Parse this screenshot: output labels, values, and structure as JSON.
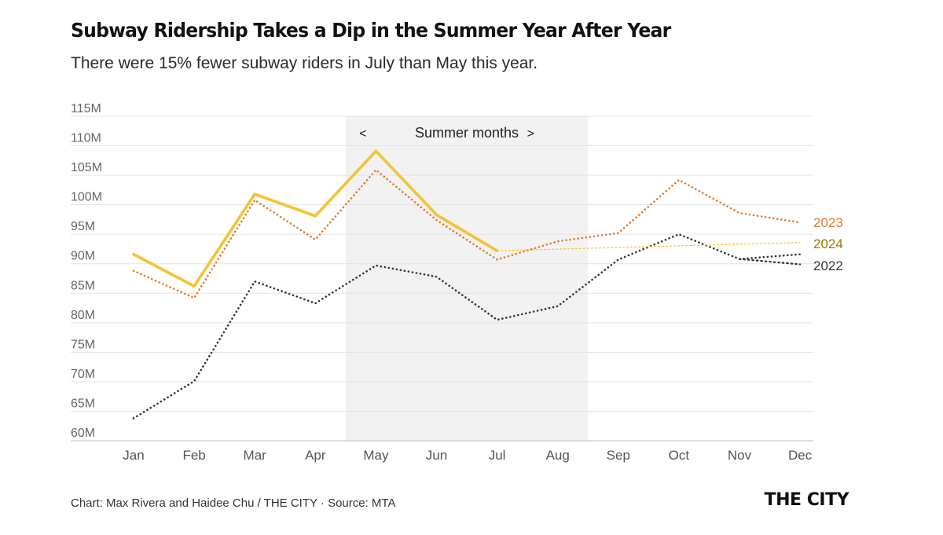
{
  "header": {
    "title": "Subway Ridership Takes a Dip in the Summer Year After Year",
    "subtitle": "There were 15% fewer subway riders in July than May this year."
  },
  "footer": {
    "credit": "Chart: Max Rivera and Haidee Chu / THE CITY · Source: MTA",
    "logo": "THE CITY"
  },
  "chart_data": {
    "type": "line",
    "x": [
      "Jan",
      "Feb",
      "Mar",
      "Apr",
      "May",
      "Jun",
      "Jul",
      "Aug",
      "Sep",
      "Oct",
      "Nov",
      "Dec"
    ],
    "ylim": [
      60,
      115
    ],
    "yticks": [
      60,
      65,
      70,
      75,
      80,
      85,
      90,
      95,
      100,
      105,
      110,
      115
    ],
    "ytick_labels": [
      "60M",
      "65M",
      "70M",
      "75M",
      "80M",
      "85M",
      "90M",
      "95M",
      "100M",
      "105M",
      "110M",
      "115M"
    ],
    "grid": "horizontal",
    "highlight": {
      "start": "May",
      "end": "Aug",
      "label": "Summer months",
      "left_marker": "<",
      "right_marker": ">",
      "color": "#f2f2f2"
    },
    "series": [
      {
        "name": "2023",
        "color": "#e07a2e",
        "style": "dotted",
        "values": [
          88.8,
          84.2,
          100.8,
          94.1,
          105.9,
          97.4,
          90.7,
          93.8,
          95.2,
          104.2,
          98.6,
          97
        ]
      },
      {
        "name": "2024",
        "color": "#f5c232",
        "style": "solid",
        "values": [
          91.6,
          86.2,
          101.8,
          98.1,
          109.1,
          98.3,
          92.2,
          null,
          null,
          null,
          null,
          null
        ],
        "trend_values": [
          null,
          null,
          null,
          null,
          null,
          null,
          92.2,
          null,
          null,
          null,
          null,
          93.6
        ],
        "label_color": "#9a7a00"
      },
      {
        "name": "2022",
        "color": "#333333",
        "style": "dotted",
        "values": [
          63.8,
          70.1,
          87,
          83.3,
          89.7,
          87.8,
          80.5,
          82.8,
          90.7,
          95,
          90.8,
          91.6
        ],
        "trend_values": [
          null,
          null,
          null,
          null,
          null,
          null,
          null,
          null,
          null,
          null,
          null,
          89.9
        ]
      }
    ]
  }
}
